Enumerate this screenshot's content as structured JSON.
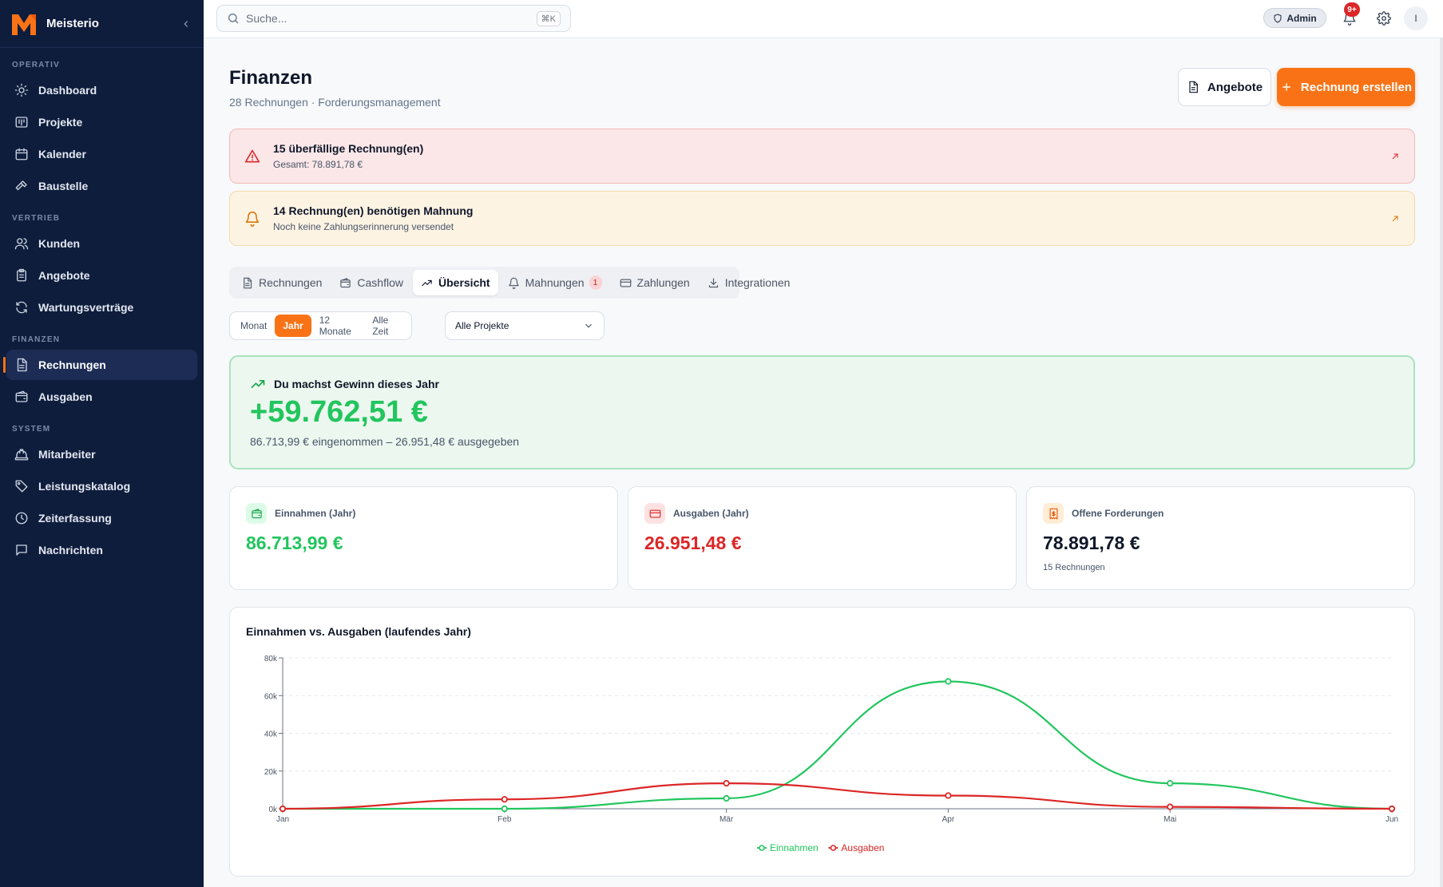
{
  "app": {
    "name": "Meisterio"
  },
  "colors": {
    "accent": "#f97316",
    "sidebar": "#0f1d3d",
    "income": "#22c55e",
    "expense": "#dc2626",
    "danger": "#dc2626",
    "warning": "#d97706"
  },
  "sidebar": {
    "sections": [
      {
        "label": "OPERATIV",
        "items": [
          {
            "label": "Dashboard",
            "icon": "sun-icon"
          },
          {
            "label": "Projekte",
            "icon": "kanban-icon"
          },
          {
            "label": "Kalender",
            "icon": "calendar-icon"
          },
          {
            "label": "Baustelle",
            "icon": "hammer-icon"
          }
        ]
      },
      {
        "label": "VERTRIEB",
        "items": [
          {
            "label": "Kunden",
            "icon": "users-icon"
          },
          {
            "label": "Angebote",
            "icon": "clipboard-icon"
          },
          {
            "label": "Wartungsverträge",
            "icon": "refresh-icon"
          }
        ]
      },
      {
        "label": "FINANZEN",
        "items": [
          {
            "label": "Rechnungen",
            "icon": "document-icon",
            "active": true
          },
          {
            "label": "Ausgaben",
            "icon": "wallet-icon"
          }
        ]
      },
      {
        "label": "SYSTEM",
        "items": [
          {
            "label": "Mitarbeiter",
            "icon": "hardhat-icon"
          },
          {
            "label": "Leistungskatalog",
            "icon": "tag-icon"
          },
          {
            "label": "Zeiterfassung",
            "icon": "clock-icon"
          },
          {
            "label": "Nachrichten",
            "icon": "message-icon"
          }
        ]
      }
    ]
  },
  "topbar": {
    "search_placeholder": "Suche...",
    "search_shortcut": "⌘K",
    "role": "Admin",
    "notifications": "9+",
    "avatar_initial": "I"
  },
  "page": {
    "title": "Finanzen",
    "subtitle": "28 Rechnungen · Forderungsmanagement",
    "btn_secondary": "Angebote",
    "btn_primary": "Rechnung erstellen"
  },
  "alerts": {
    "overdue": {
      "title": "15 überfällige Rechnung(en)",
      "sub": "Gesamt: 78.891,78 €"
    },
    "dunning": {
      "title": "14 Rechnung(en) benötigen Mahnung",
      "sub": "Noch keine Zahlungserinnerung versendet"
    }
  },
  "tabs": {
    "rechnungen": "Rechnungen",
    "cashflow": "Cashflow",
    "uebersicht": "Übersicht",
    "mahnungen": "Mahnungen",
    "mahnungen_badge": "1",
    "zahlungen": "Zahlungen",
    "integrationen": "Integrationen"
  },
  "filters": {
    "periods": {
      "monat": "Monat",
      "jahr": "Jahr",
      "zwoelf": "12 Monate",
      "alle": "Alle Zeit"
    },
    "project": "Alle Projekte"
  },
  "profit": {
    "headline": "Du machst Gewinn dieses Jahr",
    "value": "+59.762,51 €",
    "detail": "86.713,99 € eingenommen – 26.951,48 € ausgegeben"
  },
  "kpis": {
    "income": {
      "label": "Einnahmen (Jahr)",
      "value": "86.713,99 €"
    },
    "expenses": {
      "label": "Ausgaben (Jahr)",
      "value": "26.951,48 €"
    },
    "receivables": {
      "label": "Offene Forderungen",
      "value": "78.891,78 €",
      "sub": "15 Rechnungen"
    }
  },
  "chart_data": {
    "type": "line",
    "title": "Einnahmen vs. Ausgaben (laufendes Jahr)",
    "categories": [
      "Jan",
      "Feb",
      "Mär",
      "Apr",
      "Mai",
      "Jun"
    ],
    "series": [
      {
        "name": "Einnahmen",
        "color": "#22c55e",
        "values": [
          0,
          0,
          5500,
          67500,
          13500,
          0
        ]
      },
      {
        "name": "Ausgaben",
        "color": "#dc2626",
        "values": [
          0,
          5000,
          13500,
          7000,
          1000,
          0
        ]
      }
    ],
    "ylim": [
      0,
      80000
    ],
    "yticks": [
      "0k",
      "20k",
      "40k",
      "60k",
      "80k"
    ],
    "grid": true,
    "legend": "bottom-center"
  }
}
